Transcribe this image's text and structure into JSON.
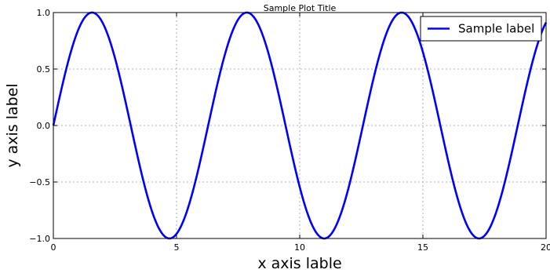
{
  "chart_data": {
    "type": "line",
    "title": "Sample Plot Title",
    "xlabel": "x axis lable",
    "ylabel": "y axis label",
    "xlim": [
      0,
      20
    ],
    "ylim": [
      -1.0,
      1.0
    ],
    "xticks": [
      0,
      5,
      10,
      15,
      20
    ],
    "xtick_labels": [
      "0",
      "5",
      "10",
      "15",
      "20"
    ],
    "yticks": [
      1.0,
      0.5,
      0.0,
      -0.5,
      -1.0
    ],
    "ytick_labels": [
      "1.0",
      "0.5",
      "0.0",
      "−0.5",
      "−1.0"
    ],
    "grid": true,
    "legend_position": "top-right",
    "series": [
      {
        "name": "Sample label",
        "color": "#0000ff",
        "function": "sin(x)",
        "x": [
          0,
          1,
          1.5708,
          2,
          3,
          3.1416,
          4,
          4.7124,
          5,
          6,
          6.2832,
          7,
          7.854,
          8,
          9,
          9.4248,
          10,
          10.9956,
          11,
          12,
          12.5664,
          13,
          14,
          14.1372,
          15,
          15.708,
          16,
          17,
          17.2788,
          18,
          19,
          20
        ],
        "values": [
          0,
          0.841,
          1.0,
          0.909,
          0.141,
          0,
          -0.757,
          -1.0,
          -0.959,
          -0.279,
          0,
          0.657,
          1.0,
          0.989,
          0.412,
          0,
          -0.544,
          -1.0,
          -1.0,
          -0.537,
          0,
          0.42,
          0.991,
          1.0,
          0.65,
          0,
          -0.288,
          -0.961,
          -1.0,
          -0.751,
          0.15,
          0.913
        ]
      }
    ]
  }
}
